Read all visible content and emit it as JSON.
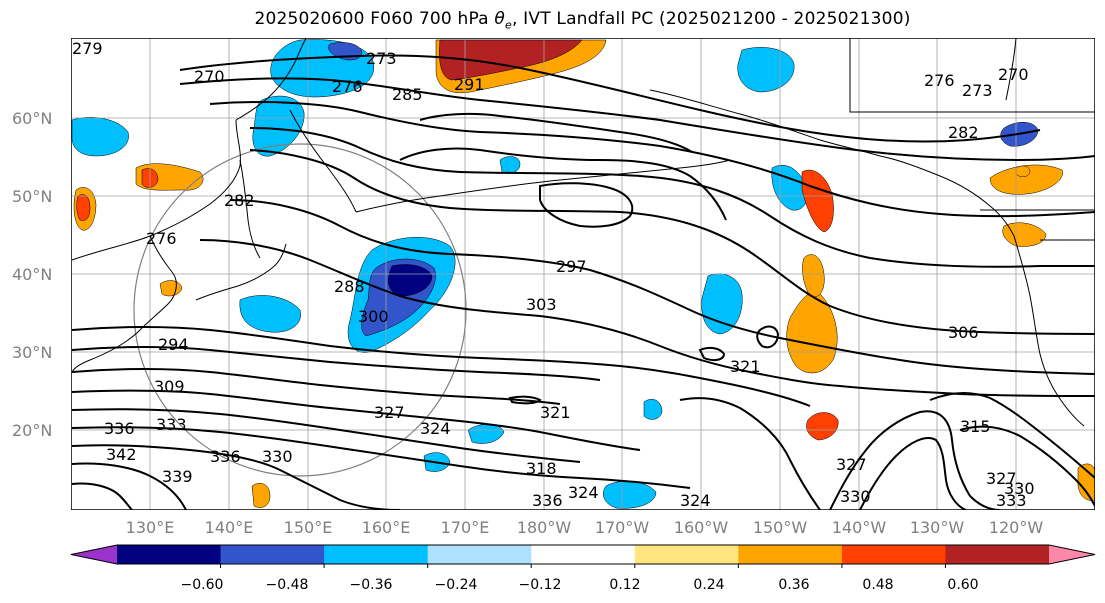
{
  "title_prefix": "2025020600 F060 700 hPa ",
  "title_symbol": "θ",
  "title_symbol_sub": "e",
  "title_suffix": ", IVT Landfall PC (2025021200 - 2025021300)",
  "lat_labels": [
    "60°N",
    "50°N",
    "40°N",
    "30°N",
    "20°N"
  ],
  "lon_labels": [
    "130°E",
    "140°E",
    "150°E",
    "160°E",
    "170°E",
    "180°W",
    "170°W",
    "160°W",
    "150°W",
    "140°W",
    "130°W",
    "120°W"
  ],
  "colorbar": {
    "ticks": [
      "−0.60",
      "−0.48",
      "−0.36",
      "−0.24",
      "−0.12",
      "0.12",
      "0.24",
      "0.36",
      "0.48",
      "0.60"
    ],
    "colors": [
      "#9933cc",
      "#000080",
      "#3355cc",
      "#00bfff",
      "#aee0ff",
      "#ffffff",
      "#ffe680",
      "#ffa500",
      "#ff4000",
      "#b22222",
      "#ff88aa"
    ]
  },
  "contour_labels": [
    "270",
    "273",
    "276",
    "279",
    "285",
    "291",
    "288",
    "282",
    "276",
    "273",
    "270",
    "297",
    "303",
    "300",
    "294",
    "309",
    "306",
    "321",
    "324",
    "327",
    "321",
    "324",
    "318",
    "330",
    "333",
    "336",
    "339",
    "342",
    "336",
    "315",
    "327",
    "330",
    "333",
    "324",
    "330",
    "327",
    "336",
    "282",
    "276"
  ]
}
